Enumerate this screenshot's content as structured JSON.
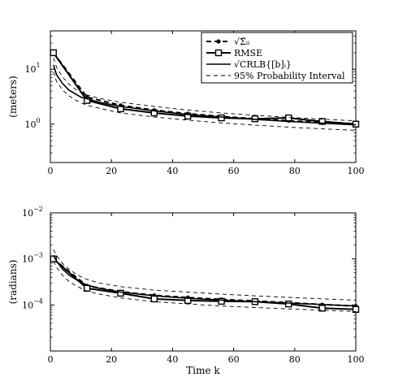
{
  "chart_data": [
    {
      "type": "line",
      "xlabel": "",
      "ylabel": "(meters)",
      "yscale": "log",
      "xlim": [
        0,
        100
      ],
      "ylim": [
        0.2,
        50
      ],
      "xticks": [
        0,
        20,
        40,
        60,
        80,
        100
      ],
      "yticks": [
        1,
        10
      ],
      "ytick_labels": [
        {
          "base": "10",
          "exp": "0"
        },
        {
          "base": "10",
          "exp": "1"
        }
      ],
      "grid": false,
      "legend": {
        "position": "top-right",
        "entries": [
          "√Σ̅ᵢᵢ",
          "RMSE",
          "√CRLB{[b]ᵢ}",
          "95% Probability Interval"
        ]
      },
      "series": [
        {
          "name": "sqrt Sigma_ii",
          "style": "dashed-star",
          "x": [
            1,
            12,
            23,
            34,
            45,
            56,
            67,
            78,
            89,
            100
          ],
          "y": [
            20,
            3.1,
            2.2,
            1.8,
            1.55,
            1.38,
            1.25,
            1.15,
            1.08,
            1.02
          ]
        },
        {
          "name": "RMSE",
          "style": "solid-square",
          "x": [
            1,
            12,
            23,
            34,
            45,
            56,
            67,
            78,
            89,
            100
          ],
          "y": [
            20,
            2.7,
            1.9,
            1.6,
            1.4,
            1.3,
            1.25,
            1.3,
            1.12,
            1.0
          ]
        },
        {
          "name": "sqrt CRLB",
          "style": "solid",
          "x": [
            1,
            2,
            4,
            6,
            8,
            10,
            12,
            16,
            23,
            34,
            45,
            56,
            67,
            78,
            89,
            100
          ],
          "y": [
            12,
            8,
            5.5,
            4.2,
            3.6,
            3.1,
            2.9,
            2.5,
            2.1,
            1.75,
            1.5,
            1.35,
            1.22,
            1.12,
            1.04,
            0.97
          ]
        },
        {
          "name": "95% upper",
          "style": "thin-dashed",
          "x": [
            1,
            2,
            4,
            6,
            8,
            10,
            12,
            16,
            23,
            34,
            45,
            56,
            67,
            78,
            89,
            100
          ],
          "y": [
            16,
            11,
            7.2,
            5.4,
            4.4,
            3.8,
            3.4,
            2.95,
            2.5,
            2.1,
            1.8,
            1.6,
            1.45,
            1.33,
            1.23,
            1.15
          ]
        },
        {
          "name": "95% lower",
          "style": "thin-dashed",
          "x": [
            1,
            2,
            4,
            6,
            8,
            10,
            12,
            16,
            23,
            34,
            45,
            56,
            67,
            78,
            89,
            100
          ],
          "y": [
            9,
            6,
            4.2,
            3.3,
            2.8,
            2.45,
            2.2,
            1.95,
            1.6,
            1.35,
            1.18,
            1.05,
            0.96,
            0.88,
            0.82,
            0.77
          ]
        }
      ]
    },
    {
      "type": "line",
      "xlabel": "Time k",
      "ylabel": "(radians)",
      "yscale": "log",
      "xlim": [
        0,
        100
      ],
      "ylim": [
        1e-05,
        0.01
      ],
      "xticks": [
        0,
        20,
        40,
        60,
        80,
        100
      ],
      "yticks": [
        0.0001,
        0.001,
        0.01
      ],
      "ytick_labels": [
        {
          "base": "10",
          "exp": "−4"
        },
        {
          "base": "10",
          "exp": "−3"
        },
        {
          "base": "10",
          "exp": "−2"
        }
      ],
      "grid": false,
      "series": [
        {
          "name": "sqrt Sigma_ii",
          "style": "dashed-star",
          "x": [
            1,
            12,
            23,
            34,
            45,
            56,
            67,
            78,
            89,
            100
          ],
          "y": [
            0.001,
            0.00026,
            0.000195,
            0.000162,
            0.000145,
            0.000132,
            0.000122,
            0.000112,
            0.000102,
            9.5e-05
          ]
        },
        {
          "name": "RMSE",
          "style": "solid-square",
          "x": [
            1,
            12,
            23,
            34,
            45,
            56,
            67,
            78,
            89,
            100
          ],
          "y": [
            0.001,
            0.00023,
            0.00018,
            0.000135,
            0.000125,
            0.00012,
            0.000118,
            0.000105,
            8.5e-05,
            8e-05
          ]
        },
        {
          "name": "sqrt CRLB",
          "style": "solid",
          "x": [
            1,
            2,
            4,
            6,
            8,
            10,
            12,
            16,
            23,
            34,
            45,
            56,
            67,
            78,
            89,
            100
          ],
          "y": [
            0.0012,
            0.0009,
            0.0006,
            0.00045,
            0.00037,
            0.00031,
            0.00027,
            0.00023,
            0.00019,
            0.000158,
            0.00014,
            0.000128,
            0.000118,
            0.00011,
            0.000102,
            9.5e-05
          ]
        },
        {
          "name": "95% upper",
          "style": "thin-dashed",
          "x": [
            1,
            2,
            4,
            6,
            8,
            10,
            12,
            16,
            23,
            34,
            45,
            56,
            67,
            78,
            89,
            100
          ],
          "y": [
            0.0016,
            0.0012,
            0.0008,
            0.0006,
            0.00049,
            0.00041,
            0.00036,
            0.0003,
            0.00025,
            0.00021,
            0.00019,
            0.000172,
            0.000158,
            0.000146,
            0.000136,
            0.000127
          ]
        },
        {
          "name": "95% lower",
          "style": "thin-dashed",
          "x": [
            1,
            2,
            4,
            6,
            8,
            10,
            12,
            16,
            23,
            34,
            45,
            56,
            67,
            78,
            89,
            100
          ],
          "y": [
            0.0009,
            0.00066,
            0.00044,
            0.00033,
            0.00027,
            0.00023,
            0.0002,
            0.000172,
            0.000142,
            0.000118,
            0.000105,
            9.5e-05,
            8.8e-05,
            8.2e-05,
            7.7e-05,
            7.2e-05
          ]
        }
      ]
    }
  ]
}
